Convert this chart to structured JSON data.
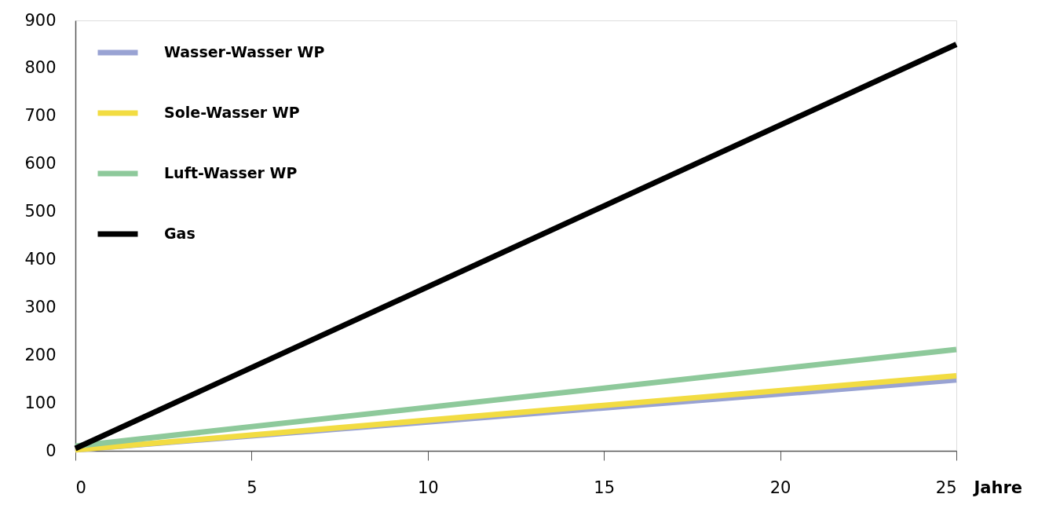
{
  "chart_data": {
    "type": "line",
    "xlabel": "Jahre",
    "x": [
      0,
      25
    ],
    "series": [
      {
        "name": "Wasser-Wasser WP",
        "color": "#99a3d3",
        "values": [
          2,
          148
        ]
      },
      {
        "name": "Sole-Wasser WP",
        "color": "#f2dc42",
        "values": [
          2,
          157
        ]
      },
      {
        "name": "Luft-Wasser WP",
        "color": "#8ec99b",
        "values": [
          10,
          212
        ]
      },
      {
        "name": "Gas",
        "color": "#000000",
        "values": [
          5,
          850
        ]
      }
    ],
    "xlim": [
      0,
      25
    ],
    "xticks": [
      0,
      5,
      10,
      15,
      20,
      25
    ],
    "ylim": [
      0,
      900
    ],
    "yticks": [
      0,
      100,
      200,
      300,
      400,
      500,
      600,
      700,
      800,
      900
    ],
    "grid": false,
    "legend": "top left",
    "marker": "none",
    "line_style": "solid"
  }
}
